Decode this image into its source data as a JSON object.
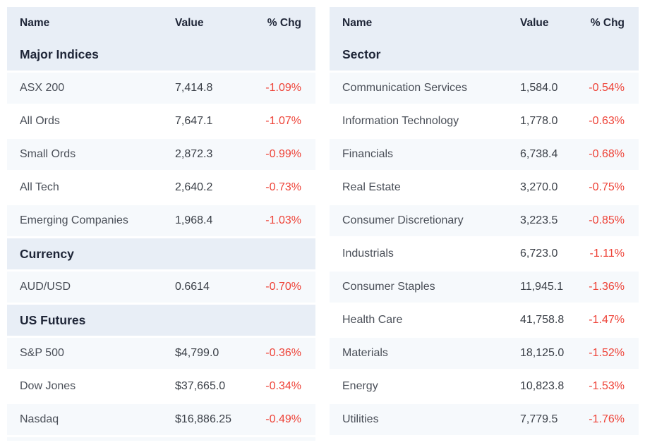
{
  "columns": {
    "name": "Name",
    "value": "Value",
    "pct": "% Chg"
  },
  "colors": {
    "header_bg": "#e8eef6",
    "stripe_bg": "#f6f9fc",
    "row_bg": "#ffffff",
    "negative": "#ee4237",
    "heading_text": "#1e2537",
    "name_text": "#4a4f58",
    "value_text": "#3b4048"
  },
  "tables": [
    {
      "name": "market-summary",
      "groups": [
        {
          "title": "Major Indices",
          "rows": [
            {
              "name": "ASX 200",
              "value": "7,414.8",
              "chg": "-1.09%"
            },
            {
              "name": "All Ords",
              "value": "7,647.1",
              "chg": "-1.07%"
            },
            {
              "name": "Small Ords",
              "value": "2,872.3",
              "chg": "-0.99%"
            },
            {
              "name": "All Tech",
              "value": "2,640.2",
              "chg": "-0.73%"
            },
            {
              "name": "Emerging Companies",
              "value": "1,968.4",
              "chg": "-1.03%"
            }
          ]
        },
        {
          "title": "Currency",
          "rows": [
            {
              "name": "AUD/USD",
              "value": "0.6614",
              "chg": "-0.70%"
            }
          ]
        },
        {
          "title": "US Futures",
          "rows": [
            {
              "name": "S&P 500",
              "value": "$4,799.0",
              "chg": "-0.36%"
            },
            {
              "name": "Dow Jones",
              "value": "$37,665.0",
              "chg": "-0.34%"
            },
            {
              "name": "Nasdaq",
              "value": "$16,886.25",
              "chg": "-0.49%"
            }
          ]
        }
      ]
    },
    {
      "name": "sectors",
      "groups": [
        {
          "title": "Sector",
          "rows": [
            {
              "name": "Communication Services",
              "value": "1,584.0",
              "chg": "-0.54%"
            },
            {
              "name": "Information Technology",
              "value": "1,778.0",
              "chg": "-0.63%"
            },
            {
              "name": "Financials",
              "value": "6,738.4",
              "chg": "-0.68%"
            },
            {
              "name": "Real Estate",
              "value": "3,270.0",
              "chg": "-0.75%"
            },
            {
              "name": "Consumer Discretionary",
              "value": "3,223.5",
              "chg": "-0.85%"
            },
            {
              "name": "Industrials",
              "value": "6,723.0",
              "chg": "-1.11%"
            },
            {
              "name": "Consumer Staples",
              "value": "11,945.1",
              "chg": "-1.36%"
            },
            {
              "name": "Health Care",
              "value": "41,758.8",
              "chg": "-1.47%"
            },
            {
              "name": "Materials",
              "value": "18,125.0",
              "chg": "-1.52%"
            },
            {
              "name": "Energy",
              "value": "10,823.8",
              "chg": "-1.53%"
            },
            {
              "name": "Utilities",
              "value": "7,779.5",
              "chg": "-1.76%"
            }
          ]
        }
      ]
    }
  ]
}
